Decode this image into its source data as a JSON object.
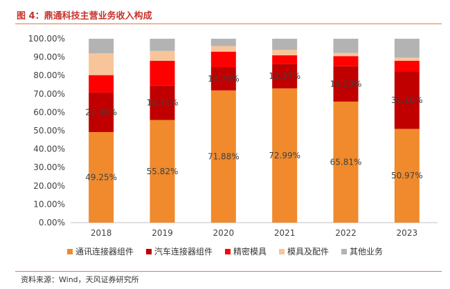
{
  "title": "图 4：鼎通科技主营业务收入构成",
  "source": "资料来源：Wind，天风证券研究所",
  "chart_data": {
    "type": "bar",
    "stacked": true,
    "categories": [
      "2018",
      "2019",
      "2020",
      "2021",
      "2022",
      "2023"
    ],
    "yticks": [
      "0.00%",
      "10.00%",
      "20.00%",
      "30.00%",
      "40.00%",
      "50.00%",
      "60.00%",
      "70.00%",
      "80.00%",
      "90.00%",
      "100.00%"
    ],
    "ylim": [
      0,
      100
    ],
    "grid": false,
    "legend_position": "bottom",
    "series": [
      {
        "name": "通讯连接器组件",
        "color": "#f08a2c",
        "values": [
          49.25,
          55.82,
          71.88,
          72.99,
          65.81,
          50.97
        ],
        "labels": [
          "49.25%",
          "55.82%",
          "71.88%",
          "72.99%",
          "65.81%",
          "50.97%"
        ]
      },
      {
        "name": "汽车连接器组件",
        "color": "#c00000",
        "values": [
          21.46,
          18.71,
          12.7,
          13.37,
          19.23,
          31.16
        ],
        "labels": [
          "21.46%",
          "18.71%",
          "12.70%",
          "13.37%",
          "19.23%",
          "31.16%"
        ]
      },
      {
        "name": "精密模具",
        "color": "#ff0000",
        "values": [
          9.5,
          13.5,
          8.4,
          4.6,
          5.5,
          5.9
        ]
      },
      {
        "name": "模具及配件",
        "color": "#f8c59a",
        "values": [
          11.8,
          5.3,
          3.0,
          3.0,
          1.7,
          1.7
        ]
      },
      {
        "name": "其他业务",
        "color": "#b3b3b3",
        "values": [
          7.99,
          6.67,
          4.02,
          6.04,
          7.76,
          10.27
        ]
      }
    ]
  }
}
